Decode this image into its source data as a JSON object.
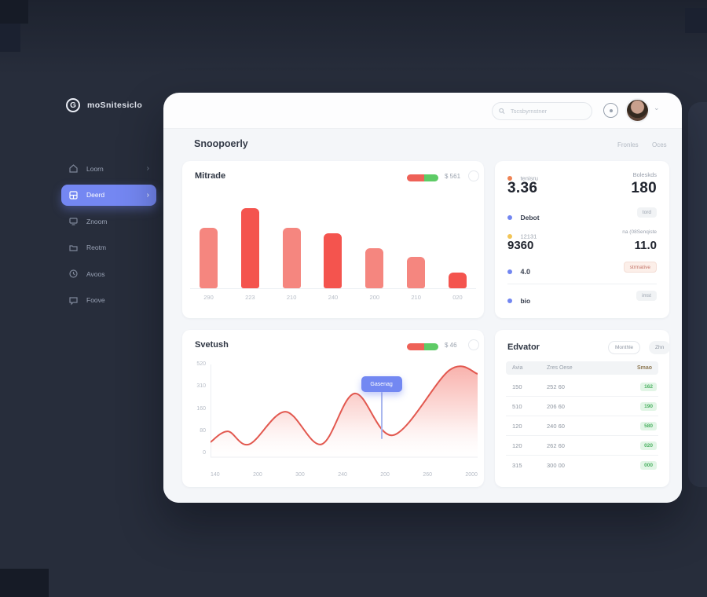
{
  "colors": {
    "page_bg": "#272d3b",
    "accent": "#7487f2",
    "bar_red": "#f4544e",
    "bar_salmon": "#f5867f",
    "line_red": "#e2584f",
    "green_badge_bg": "#e2f5e6",
    "green_badge_text": "#48b05f",
    "tooltip_blue": "#7388f2"
  },
  "brand": {
    "name": "moSnitesiclo",
    "logo_letter": "G"
  },
  "header": {
    "search_placeholder": "Tscsbyrnstner"
  },
  "page_header": {
    "title": "Snoopoerly",
    "links": [
      {
        "label": "Fronles"
      },
      {
        "label": "Oces"
      }
    ]
  },
  "sidebar": {
    "items": [
      {
        "label": "Loorn",
        "icon": "home-icon",
        "chevron": true,
        "active": false
      },
      {
        "label": "Deerd",
        "icon": "chart-icon",
        "chevron": true,
        "active": true
      },
      {
        "label": "Znoom",
        "icon": "monitor-icon",
        "chevron": false,
        "active": false
      },
      {
        "label": "Reotm",
        "icon": "folder-icon",
        "chevron": false,
        "active": false
      },
      {
        "label": "Avoos",
        "icon": "clock-icon",
        "chevron": false,
        "active": false
      },
      {
        "label": "Foove",
        "icon": "chat-icon",
        "chevron": false,
        "active": false
      }
    ]
  },
  "bar_card": {
    "title": "Mitrade",
    "legend_value": "$ 561",
    "chart_data": {
      "type": "bar",
      "title": "Mitrade",
      "categories": [
        "290",
        "223",
        "210",
        "240",
        "200",
        "210",
        "020"
      ],
      "values": [
        78,
        104,
        78,
        71,
        52,
        41,
        20
      ],
      "colors": [
        "#f5867f",
        "#f4544e",
        "#f5867f",
        "#f4544e",
        "#f5867f",
        "#f5867f",
        "#f4544e"
      ],
      "ylim": [
        0,
        110
      ],
      "xlabel": "",
      "ylabel": "",
      "grid": false,
      "legend_position": "top-right"
    }
  },
  "stats_card": {
    "rows": [
      {
        "label": "tenisru",
        "value": "3.36",
        "right_label": "Boleskds",
        "right_value": "180"
      },
      {
        "label": "Debot",
        "right_pill": "tord"
      },
      {
        "label": "12131",
        "right_label": "na (08Senqiste",
        "value": "9360",
        "right_value": "11.0"
      },
      {
        "label": "4.0",
        "right_badge": "strmative"
      },
      {
        "label": "bio",
        "right_pill": "imst"
      }
    ]
  },
  "area_card": {
    "title": "Svetush",
    "legend_value": "$ 46",
    "chart_data": {
      "type": "area",
      "title": "Svetush",
      "x_ticks": [
        "140",
        "200",
        "300",
        "240",
        "200",
        "260",
        "2000"
      ],
      "y_ticks": [
        "520",
        "310",
        "160",
        "80",
        "0"
      ],
      "ylim": [
        0,
        520
      ],
      "grid": false,
      "points": [
        {
          "x": 0,
          "v": 88
        },
        {
          "x": 6.5,
          "v": 150
        },
        {
          "x": 14.5,
          "v": 75
        },
        {
          "x": 28,
          "v": 264
        },
        {
          "x": 41.5,
          "v": 75
        },
        {
          "x": 54,
          "v": 370
        },
        {
          "x": 68.5,
          "v": 128
        },
        {
          "x": 89.5,
          "v": 506
        },
        {
          "x": 100,
          "v": 484
        }
      ],
      "tooltip": {
        "label": "Gasenag",
        "x": 64
      }
    }
  },
  "table_card": {
    "title": "Edvator",
    "buttons": [
      {
        "label": "Monthle"
      },
      {
        "label": "Zhn"
      }
    ],
    "headers": [
      "Avia",
      "Zres Oese",
      "Smao"
    ],
    "rows": [
      [
        "150",
        "252 60",
        "162"
      ],
      [
        "510",
        "206 60",
        "190"
      ],
      [
        "120",
        "240 60",
        "580"
      ],
      [
        "120",
        "262 60",
        "020"
      ],
      [
        "315",
        "300 00",
        "000"
      ]
    ]
  }
}
